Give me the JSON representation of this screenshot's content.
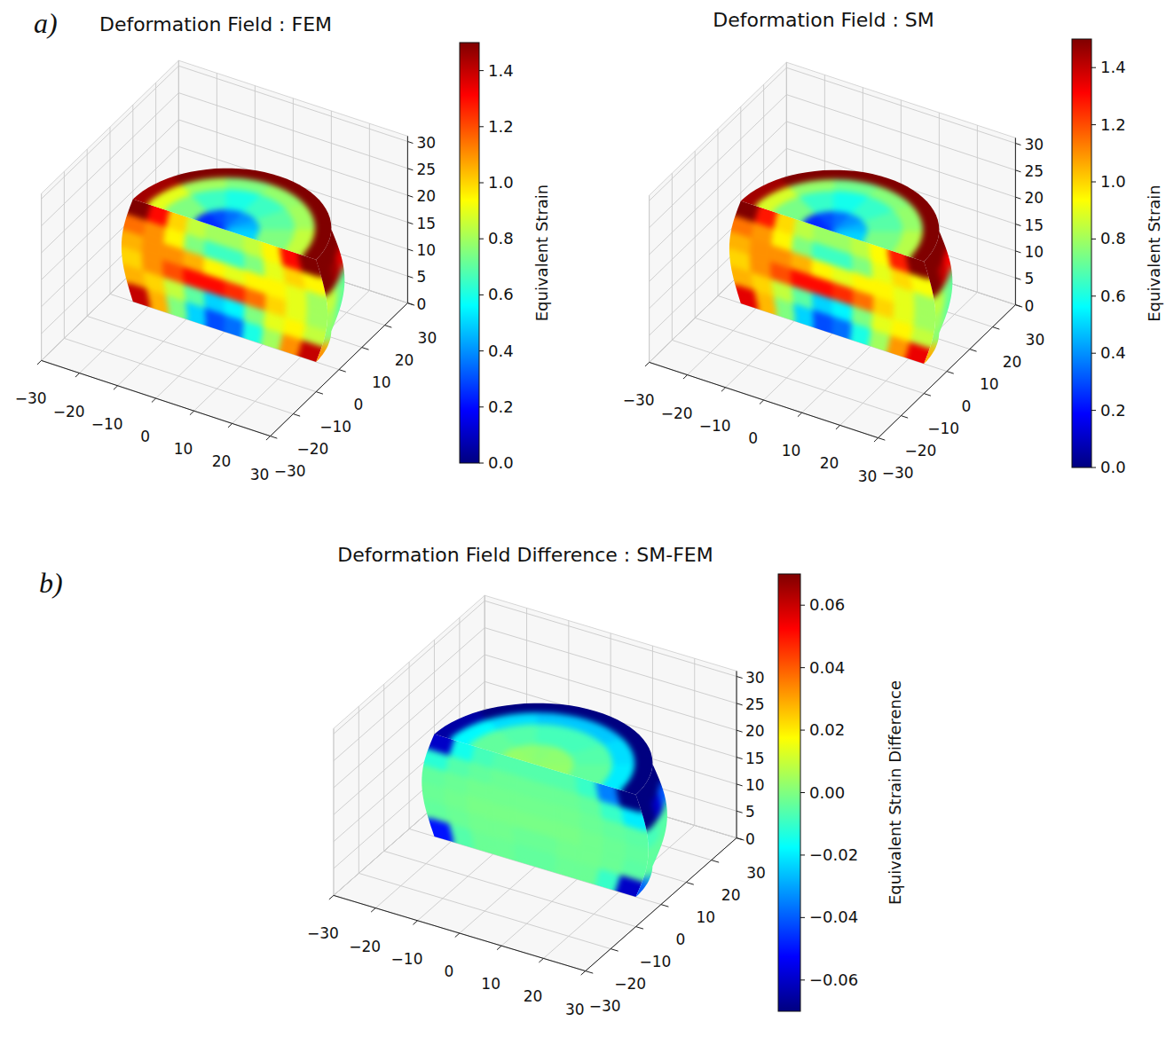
{
  "chart_data": [
    {
      "type": "surface3d",
      "panel_label": "a)",
      "title": "Deformation Field : FEM",
      "grid": true,
      "xlim": [
        -30,
        30
      ],
      "ylim": [
        -30,
        30
      ],
      "zlim": [
        0,
        31
      ],
      "xticks": [
        {
          "value": -30,
          "label": "−30"
        },
        {
          "value": -20,
          "label": "−20"
        },
        {
          "value": -10,
          "label": "−10"
        },
        0,
        10,
        20,
        30
      ],
      "yticks": [
        {
          "value": -30,
          "label": "−30"
        },
        {
          "value": -20,
          "label": "−20"
        },
        {
          "value": -10,
          "label": "−10"
        },
        0,
        10,
        20,
        30
      ],
      "zticks": [
        0,
        5,
        10,
        15,
        20,
        25,
        30
      ],
      "colorbar": {
        "label": "Equivalent Strain",
        "range": [
          0,
          1.5
        ],
        "ticks": [
          {
            "value": 0,
            "label": "0.0"
          },
          0.2,
          0.4,
          0.6,
          0.8,
          {
            "value": 1,
            "label": "1.0"
          },
          1.2,
          1.4
        ]
      },
      "field": {
        "top": [
          [
            0.5,
            0.45,
            0.4,
            0.35,
            0.3,
            0.25
          ],
          [
            0.75,
            0.7,
            0.65,
            0.6,
            0.65,
            0.75
          ],
          [
            0.85,
            0.8,
            0.78,
            0.75,
            0.8,
            0.9
          ],
          [
            1.5,
            1.5,
            1.5,
            1.5,
            1.5,
            1.45
          ]
        ],
        "front": [
          [
            1.5,
            1.3,
            1.0,
            0.85,
            0.8,
            0.8,
            0.85,
            0.95,
            1.3,
            1.5
          ],
          [
            1.15,
            1.1,
            0.95,
            0.75,
            0.65,
            0.65,
            0.75,
            0.9,
            1.0,
            0.95
          ],
          [
            1.05,
            1.1,
            1.1,
            1.05,
            0.95,
            0.9,
            0.95,
            0.95,
            0.9,
            0.8
          ],
          [
            1.0,
            1.1,
            1.2,
            1.3,
            1.3,
            1.25,
            1.15,
            1.0,
            0.9,
            0.8
          ],
          [
            1.05,
            1.0,
            0.85,
            0.7,
            0.5,
            0.55,
            0.75,
            0.9,
            0.95,
            0.85
          ],
          [
            1.4,
            1.05,
            0.75,
            0.5,
            0.3,
            0.35,
            0.6,
            0.8,
            1.1,
            1.4
          ]
        ],
        "side": [
          [
            1.5,
            1.5,
            1.5
          ],
          [
            1.5,
            1.45,
            1.35
          ],
          [
            0.85,
            0.75,
            0.7
          ],
          [
            0.8,
            0.7,
            0.68
          ],
          [
            0.78,
            0.7,
            0.68
          ],
          [
            1.1,
            0.85,
            0.72
          ]
        ]
      }
    },
    {
      "type": "surface3d",
      "title": "Deformation Field : SM",
      "grid": true,
      "xlim": [
        -30,
        30
      ],
      "ylim": [
        -30,
        30
      ],
      "zlim": [
        0,
        31
      ],
      "xticks": [
        {
          "value": -30,
          "label": "−30"
        },
        {
          "value": -20,
          "label": "−20"
        },
        {
          "value": -10,
          "label": "−10"
        },
        0,
        10,
        20,
        30
      ],
      "yticks": [
        {
          "value": -30,
          "label": "−30"
        },
        {
          "value": -20,
          "label": "−20"
        },
        {
          "value": -10,
          "label": "−10"
        },
        0,
        10,
        20,
        30
      ],
      "zticks": [
        0,
        5,
        10,
        15,
        20,
        25,
        30
      ],
      "colorbar": {
        "label": "Equivalent Strain",
        "range": [
          0,
          1.5
        ],
        "ticks": [
          {
            "value": 0,
            "label": "0.0"
          },
          0.2,
          0.4,
          0.6,
          0.8,
          {
            "value": 1,
            "label": "1.0"
          },
          1.2,
          1.4
        ]
      },
      "field": {
        "top": [
          [
            0.5,
            0.45,
            0.4,
            0.35,
            0.3,
            0.25
          ],
          [
            0.74,
            0.69,
            0.64,
            0.59,
            0.64,
            0.74
          ],
          [
            0.83,
            0.78,
            0.76,
            0.73,
            0.78,
            0.88
          ],
          [
            1.5,
            1.5,
            1.5,
            1.5,
            1.5,
            1.45
          ]
        ],
        "front": [
          [
            1.5,
            1.28,
            0.99,
            0.84,
            0.79,
            0.79,
            0.84,
            0.94,
            1.27,
            1.5
          ],
          [
            1.14,
            1.09,
            0.95,
            0.75,
            0.65,
            0.65,
            0.75,
            0.9,
            0.99,
            0.93
          ],
          [
            1.05,
            1.1,
            1.1,
            1.05,
            0.95,
            0.9,
            0.95,
            0.95,
            0.9,
            0.8
          ],
          [
            1.0,
            1.1,
            1.2,
            1.3,
            1.3,
            1.25,
            1.15,
            1.0,
            0.9,
            0.8
          ],
          [
            1.05,
            1.0,
            0.85,
            0.7,
            0.5,
            0.55,
            0.75,
            0.9,
            0.95,
            0.85
          ],
          [
            1.35,
            1.04,
            0.75,
            0.5,
            0.3,
            0.35,
            0.6,
            0.8,
            1.09,
            1.34
          ]
        ],
        "side": [
          [
            1.5,
            1.5,
            1.5
          ],
          [
            1.5,
            1.4,
            1.31
          ],
          [
            0.84,
            0.74,
            0.7
          ],
          [
            0.8,
            0.7,
            0.68
          ],
          [
            0.78,
            0.7,
            0.68
          ],
          [
            1.06,
            0.84,
            0.71
          ]
        ]
      }
    },
    {
      "type": "surface3d",
      "panel_label": "b)",
      "title": "Deformation Field Difference : SM-FEM",
      "grid": true,
      "xlim": [
        -30,
        30
      ],
      "ylim": [
        -30,
        30
      ],
      "zlim": [
        0,
        31
      ],
      "xticks": [
        {
          "value": -30,
          "label": "−30"
        },
        {
          "value": -20,
          "label": "−20"
        },
        {
          "value": -10,
          "label": "−10"
        },
        0,
        10,
        20,
        30
      ],
      "yticks": [
        {
          "value": -30,
          "label": "−30"
        },
        {
          "value": -20,
          "label": "−20"
        },
        {
          "value": -10,
          "label": "−10"
        },
        0,
        10,
        20,
        30
      ],
      "zticks": [
        0,
        5,
        10,
        15,
        20,
        25,
        30
      ],
      "colorbar": {
        "label": "Equivalent Strain Difference",
        "range": [
          -0.07,
          0.07
        ],
        "ticks": [
          {
            "value": -0.06,
            "label": "−0.06"
          },
          {
            "value": -0.04,
            "label": "−0.04"
          },
          {
            "value": -0.02,
            "label": "−0.02"
          },
          {
            "value": 0,
            "label": "0.00"
          },
          0.02,
          0.04,
          0.06
        ]
      },
      "field": {
        "top": [
          [
            0.003,
            0.002,
            0.002,
            0.001,
            0.002,
            0.003
          ],
          [
            -0.004,
            -0.006,
            -0.008,
            -0.008,
            -0.006,
            -0.004
          ],
          [
            -0.02,
            -0.022,
            -0.025,
            -0.025,
            -0.022,
            -0.018
          ],
          [
            -0.07,
            -0.07,
            -0.07,
            -0.07,
            -0.07,
            -0.065
          ]
        ],
        "front": [
          [
            -0.06,
            -0.015,
            -0.008,
            -0.006,
            -0.006,
            -0.006,
            -0.006,
            -0.01,
            -0.035,
            -0.07
          ],
          [
            -0.012,
            -0.006,
            -0.004,
            -0.003,
            -0.003,
            -0.003,
            -0.003,
            -0.004,
            -0.01,
            -0.02
          ],
          [
            -0.004,
            -0.003,
            -0.002,
            -0.002,
            -0.002,
            -0.002,
            -0.002,
            -0.003,
            -0.004,
            -0.005
          ],
          [
            -0.003,
            -0.002,
            -0.001,
            -0.001,
            -0.001,
            -0.001,
            -0.001,
            -0.002,
            -0.003,
            -0.004
          ],
          [
            -0.004,
            -0.003,
            -0.002,
            -0.002,
            -0.003,
            -0.003,
            -0.002,
            -0.002,
            -0.003,
            -0.005
          ],
          [
            -0.05,
            -0.006,
            -0.003,
            -0.003,
            -0.004,
            -0.004,
            -0.003,
            -0.003,
            -0.01,
            -0.06
          ]
        ],
        "side": [
          [
            -0.07,
            -0.07,
            -0.07
          ],
          [
            -0.07,
            -0.06,
            -0.04
          ],
          [
            -0.008,
            -0.006,
            -0.005
          ],
          [
            -0.004,
            -0.004,
            -0.004
          ],
          [
            -0.004,
            -0.004,
            -0.004
          ],
          [
            -0.04,
            -0.01,
            -0.006
          ]
        ]
      }
    }
  ]
}
